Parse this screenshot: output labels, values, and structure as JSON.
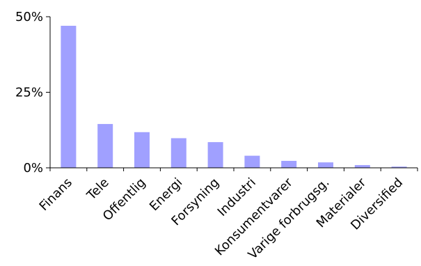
{
  "chart_data": {
    "type": "bar",
    "categories": [
      "Finans",
      "Tele",
      "Offentlig",
      "Energi",
      "Forsyning",
      "Industri",
      "Konsumentvarer",
      "Varige forbrugsg.",
      "Materialer",
      "Diversified"
    ],
    "values": [
      47,
      14.5,
      11.8,
      9.8,
      8.5,
      4,
      2.3,
      1.8,
      0.9,
      0.4
    ],
    "yticks": [
      "0%",
      "25%",
      "50%"
    ],
    "ylim": [
      0,
      50
    ],
    "title": "",
    "xlabel": "",
    "ylabel": "",
    "grid": false,
    "bar_color": "#a0a0ff"
  }
}
